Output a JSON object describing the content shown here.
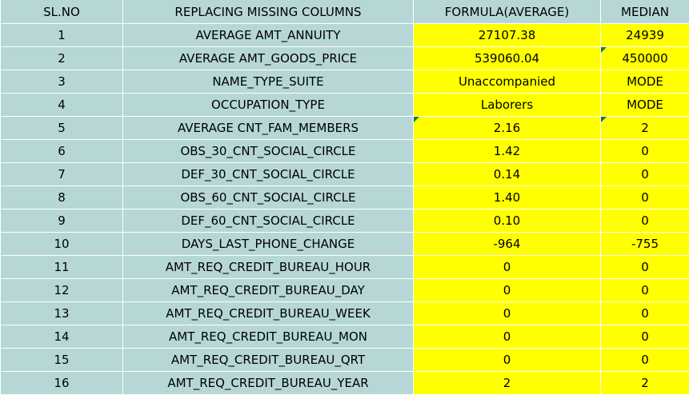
{
  "headers": {
    "slno": "SL.NO",
    "column": "REPLACING MISSING COLUMNS",
    "formula": "FORMULA(AVERAGE)",
    "median": "MEDIAN"
  },
  "rows": [
    {
      "slno": "1",
      "column": "AVERAGE  AMT_ANNUITY",
      "formula": "27107.38",
      "median": "24939"
    },
    {
      "slno": "2",
      "column": "AVERAGE AMT_GOODS_PRICE",
      "formula": "539060.04",
      "median": "450000"
    },
    {
      "slno": "3",
      "column": "NAME_TYPE_SUITE",
      "formula": "Unaccompanied",
      "median": "MODE"
    },
    {
      "slno": "4",
      "column": "OCCUPATION_TYPE",
      "formula": "Laborers",
      "median": "MODE"
    },
    {
      "slno": "5",
      "column": "AVERAGE CNT_FAM_MEMBERS",
      "formula": "2.16",
      "median": "2"
    },
    {
      "slno": "6",
      "column": "OBS_30_CNT_SOCIAL_CIRCLE",
      "formula": "1.42",
      "median": "0"
    },
    {
      "slno": "7",
      "column": "DEF_30_CNT_SOCIAL_CIRCLE",
      "formula": "0.14",
      "median": "0"
    },
    {
      "slno": "8",
      "column": "OBS_60_CNT_SOCIAL_CIRCLE",
      "formula": "1.40",
      "median": "0"
    },
    {
      "slno": "9",
      "column": "DEF_60_CNT_SOCIAL_CIRCLE",
      "formula": "0.10",
      "median": "0"
    },
    {
      "slno": "10",
      "column": "DAYS_LAST_PHONE_CHANGE",
      "formula": "-964",
      "median": "-755"
    },
    {
      "slno": "11",
      "column": "AMT_REQ_CREDIT_BUREAU_HOUR",
      "formula": "0",
      "median": "0"
    },
    {
      "slno": "12",
      "column": "AMT_REQ_CREDIT_BUREAU_DAY",
      "formula": "0",
      "median": "0"
    },
    {
      "slno": "13",
      "column": "AMT_REQ_CREDIT_BUREAU_WEEK",
      "formula": "0",
      "median": "0"
    },
    {
      "slno": "14",
      "column": "AMT_REQ_CREDIT_BUREAU_MON",
      "formula": "0",
      "median": "0"
    },
    {
      "slno": "15",
      "column": "AMT_REQ_CREDIT_BUREAU_QRT",
      "formula": "0",
      "median": "0"
    },
    {
      "slno": "16",
      "column": "AMT_REQ_CREDIT_BUREAU_YEAR",
      "formula": "2",
      "median": "2"
    }
  ],
  "colors": {
    "header_bg": "#b7d7d7",
    "value_bg": "#ffff00",
    "error_flag": "#1a7a3a"
  }
}
